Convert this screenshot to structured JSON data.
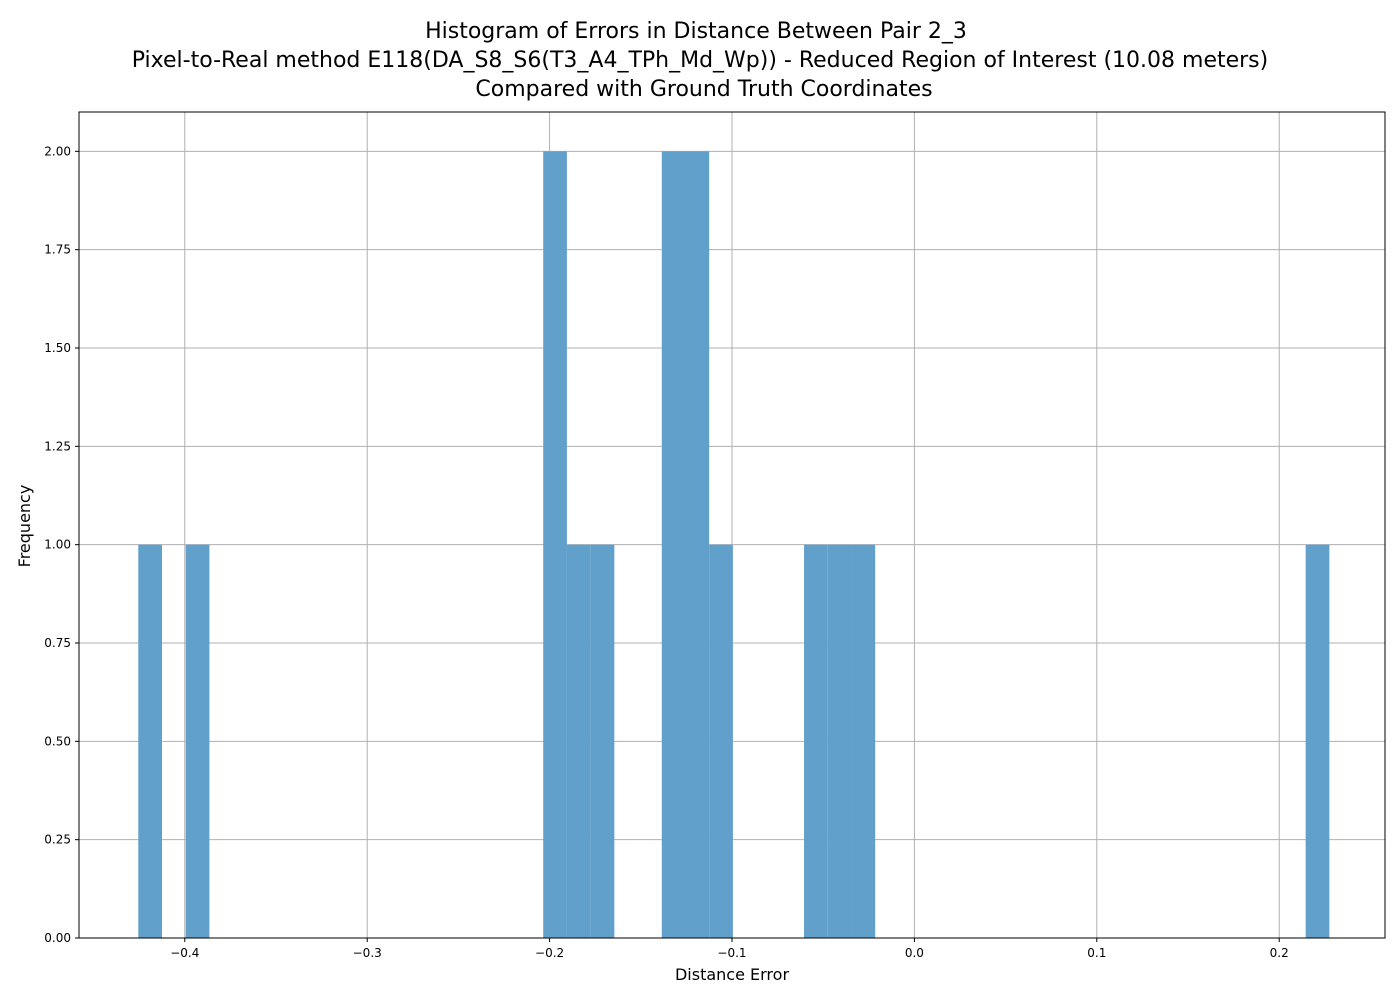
{
  "chart_data": {
    "type": "bar",
    "title_lines": [
      "Histogram of Errors in Distance Between Pair 2_3",
      "Pixel-to-Real method E118(DA_S8_S6(T3_A4_TPh_Md_Wp)) - Reduced Region of Interest (10.08 meters)",
      "Compared with Ground Truth Coordinates"
    ],
    "xlabel": "Distance Error",
    "ylabel": "Frequency",
    "xlim": [
      -0.458,
      0.258
    ],
    "ylim": [
      0,
      2.1
    ],
    "x_ticks": [
      -0.4,
      -0.3,
      -0.2,
      -0.1,
      0.0,
      0.1,
      0.2
    ],
    "x_tick_labels": [
      "−0.4",
      "−0.3",
      "−0.2",
      "−0.1",
      "0.0",
      "0.1",
      "0.2"
    ],
    "y_ticks": [
      0.0,
      0.25,
      0.5,
      0.75,
      1.0,
      1.25,
      1.5,
      1.75,
      2.0
    ],
    "y_tick_labels": [
      "0.00",
      "0.25",
      "0.50",
      "0.75",
      "1.00",
      "1.25",
      "1.50",
      "1.75",
      "2.00"
    ],
    "grid": true,
    "bar_color": "#62a0cc",
    "bins": [
      {
        "x0": -0.4255,
        "x1": -0.4125,
        "count": 1
      },
      {
        "x0": -0.3995,
        "x1": -0.3865,
        "count": 1
      },
      {
        "x0": -0.2035,
        "x1": -0.1905,
        "count": 2
      },
      {
        "x0": -0.1905,
        "x1": -0.1775,
        "count": 1
      },
      {
        "x0": -0.1775,
        "x1": -0.1645,
        "count": 1
      },
      {
        "x0": -0.1385,
        "x1": -0.1255,
        "count": 2
      },
      {
        "x0": -0.1255,
        "x1": -0.1125,
        "count": 2
      },
      {
        "x0": -0.1125,
        "x1": -0.0995,
        "count": 1
      },
      {
        "x0": -0.0605,
        "x1": -0.0475,
        "count": 1
      },
      {
        "x0": -0.0475,
        "x1": -0.0345,
        "count": 1
      },
      {
        "x0": -0.0345,
        "x1": -0.0215,
        "count": 1
      },
      {
        "x0": 0.2145,
        "x1": 0.2275,
        "count": 1
      }
    ]
  }
}
